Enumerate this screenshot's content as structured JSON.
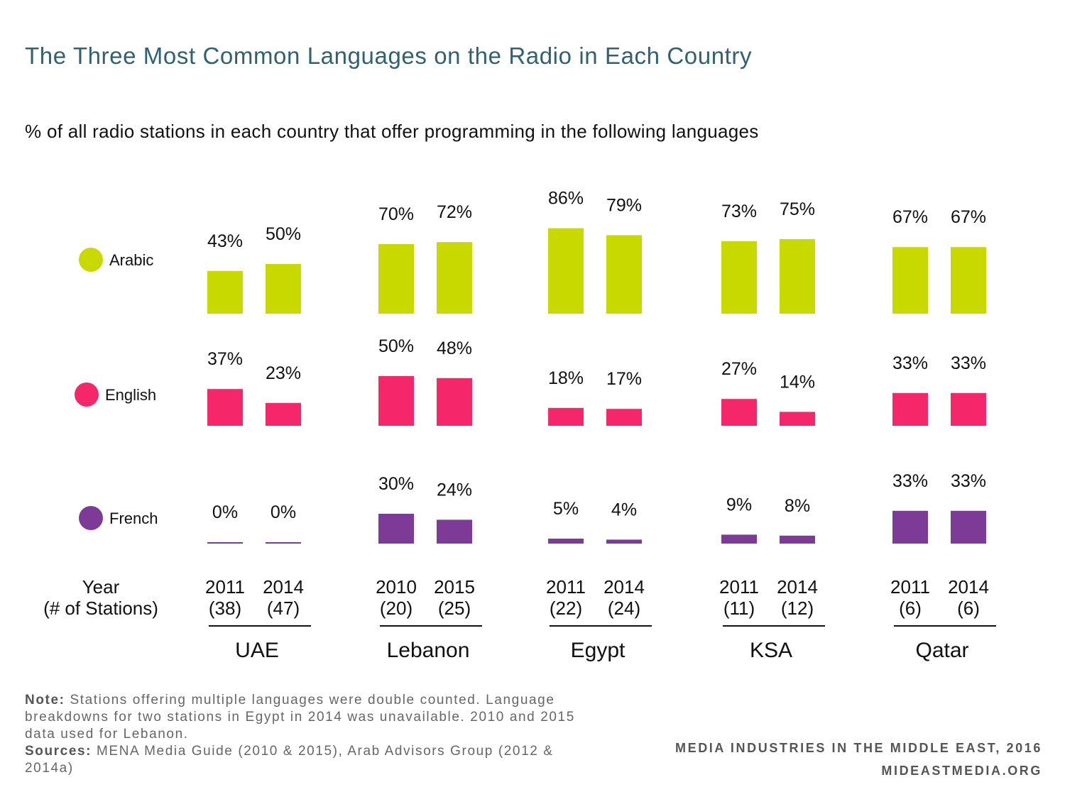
{
  "header": {
    "title": "The Three Most Common Languages on the Radio in Each Country",
    "subtitle": "% of all radio stations in each country that offer programming in the following languages"
  },
  "chart_data": {
    "type": "bar",
    "title": "The Three Most Common Languages on the Radio in Each Country",
    "subtitle": "% of all radio stations in each country that offer programming in the following languages",
    "ylim": [
      0,
      100
    ],
    "grid": false,
    "axis_label_line1": "Year",
    "axis_label_line2": "(# of Stations)",
    "languages": [
      {
        "name": "Arabic",
        "color": "#c8d900"
      },
      {
        "name": "English",
        "color": "#f5266a"
      },
      {
        "name": "French",
        "color": "#7d3a97"
      }
    ],
    "countries": [
      {
        "name": "UAE",
        "years": [
          "2011",
          "2014"
        ],
        "stations": [
          "(38)",
          "(47)"
        ],
        "values": {
          "Arabic": [
            43,
            50
          ],
          "English": [
            37,
            23
          ],
          "French": [
            0,
            0
          ]
        }
      },
      {
        "name": "Lebanon",
        "years": [
          "2010",
          "2015"
        ],
        "stations": [
          "(20)",
          "(25)"
        ],
        "values": {
          "Arabic": [
            70,
            72
          ],
          "English": [
            50,
            48
          ],
          "French": [
            30,
            24
          ]
        }
      },
      {
        "name": "Egypt",
        "years": [
          "2011",
          "2014"
        ],
        "stations": [
          "(22)",
          "(24)"
        ],
        "values": {
          "Arabic": [
            86,
            79
          ],
          "English": [
            18,
            17
          ],
          "French": [
            5,
            4
          ]
        }
      },
      {
        "name": "KSA",
        "years": [
          "2011",
          "2014"
        ],
        "stations": [
          "(11)",
          "(12)"
        ],
        "values": {
          "Arabic": [
            73,
            75
          ],
          "English": [
            27,
            14
          ],
          "French": [
            9,
            8
          ]
        }
      },
      {
        "name": "Qatar",
        "years": [
          "2011",
          "2014"
        ],
        "stations": [
          "(6)",
          "(6)"
        ],
        "values": {
          "Arabic": [
            67,
            67
          ],
          "English": [
            33,
            33
          ],
          "French": [
            33,
            33
          ]
        }
      }
    ]
  },
  "footer": {
    "note_label": "Note:",
    "note_text": " Stations offering multiple languages were double counted. Language breakdowns for two stations in Egypt in 2014 was unavailable. 2010 and 2015 data used for Lebanon.",
    "sources_label": "Sources:",
    "sources_text": " MENA Media Guide (2010 & 2015), Arab Advisors Group (2012 & 2014a)",
    "credit_line1": "MEDIA INDUSTRIES IN THE MIDDLE EAST, 2016",
    "credit_line2": "MIDEASTMEDIA.ORG"
  }
}
